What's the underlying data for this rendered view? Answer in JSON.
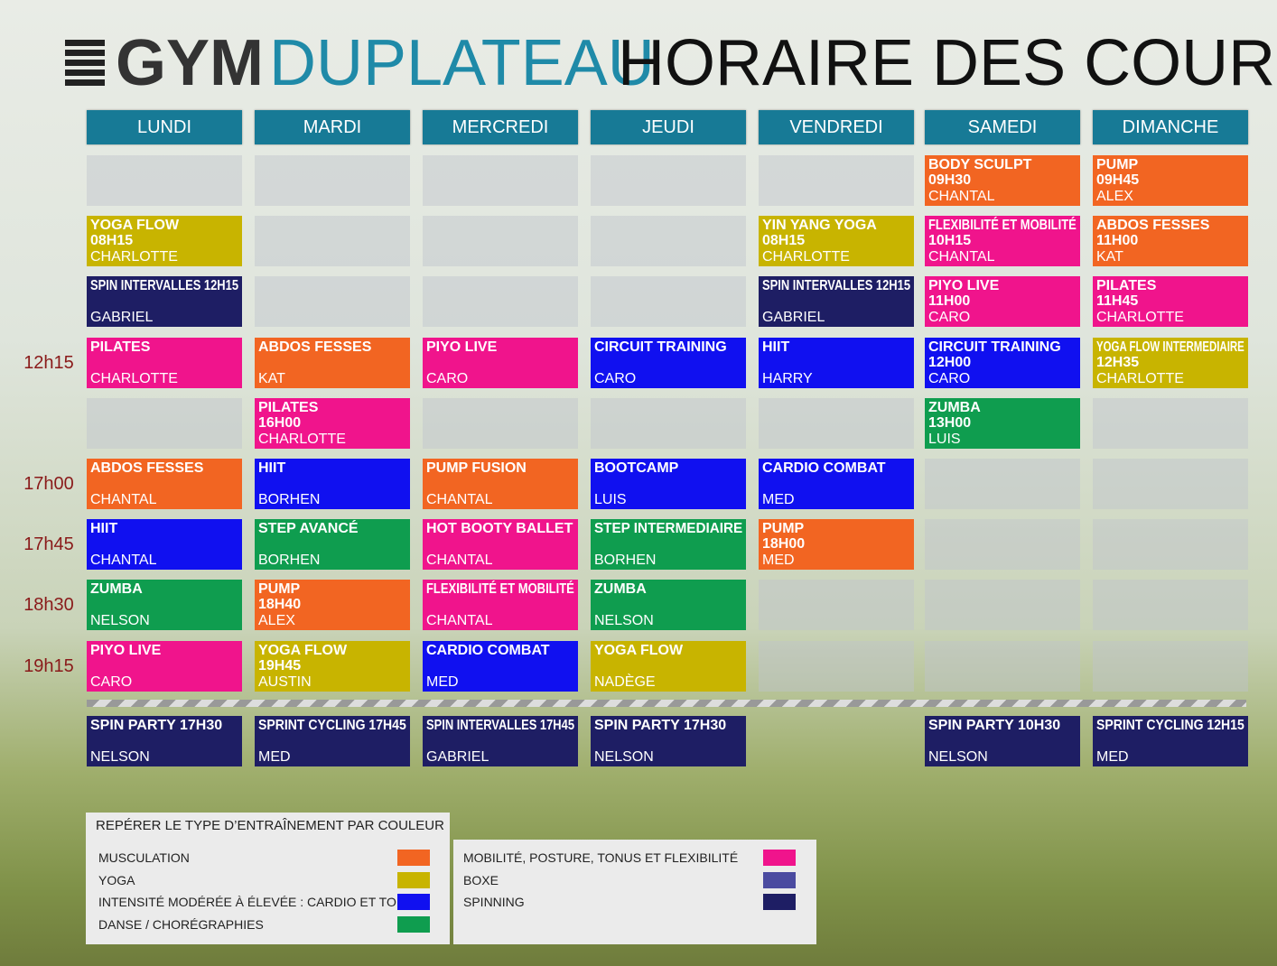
{
  "header": {
    "logo_main": "GYM",
    "logo_accent": "DUPLATEAU",
    "title": "HORAIRE DES COURS"
  },
  "days": [
    "LUNDI",
    "MARDI",
    "MERCREDI",
    "JEUDI",
    "VENDREDI",
    "SAMEDI",
    "DIMANCHE"
  ],
  "rows": [
    {
      "cells": [
        null,
        null,
        null,
        null,
        null,
        {
          "title": "BODY SCULPT",
          "time": "09H30",
          "coach": "CHANTAL",
          "color": "#f26522"
        },
        {
          "title": "PUMP",
          "time": "09H45",
          "coach": "ALEX",
          "color": "#f26522"
        }
      ]
    },
    {
      "cells": [
        {
          "title": "YOGA FLOW",
          "time": "08H15",
          "coach": "CHARLOTTE",
          "color": "#c8b400"
        },
        null,
        null,
        null,
        {
          "title": "YIN YANG YOGA",
          "time": "08H15",
          "coach": "CHARLOTTE",
          "color": "#c8b400"
        },
        {
          "title": "FLEXIBILITÉ ET MOBILITÉ",
          "time": "10H15",
          "coach": "CHANTAL",
          "color": "#f0148c"
        },
        {
          "title": "ABDOS FESSES",
          "time": "11H00",
          "coach": "KAT",
          "color": "#f26522"
        }
      ]
    },
    {
      "cells": [
        {
          "title": "SPIN INTERVALLES 12H15",
          "coach": "GABRIEL",
          "color": "#1e1e64"
        },
        null,
        null,
        null,
        {
          "title": "SPIN INTERVALLES 12H15",
          "coach": "GABRIEL",
          "color": "#1e1e64"
        },
        {
          "title": "PIYO LIVE",
          "time": "11H00",
          "coach": "CARO",
          "color": "#f0148c"
        },
        {
          "title": "PILATES",
          "time": "11H45",
          "coach": "CHARLOTTE",
          "color": "#f0148c"
        }
      ]
    },
    {
      "label": "12h15",
      "cells": [
        {
          "title": "PILATES",
          "coach": "CHARLOTTE",
          "color": "#f0148c"
        },
        {
          "title": "ABDOS FESSES",
          "coach": "KAT",
          "color": "#f26522"
        },
        {
          "title": "PIYO LIVE",
          "coach": "CARO",
          "color": "#f0148c"
        },
        {
          "title": "CIRCUIT TRAINING",
          "coach": "CARO",
          "color": "#1010f0"
        },
        {
          "title": "HIIT",
          "coach": "HARRY",
          "color": "#1010f0"
        },
        {
          "title": "CIRCUIT TRAINING",
          "time": "12H00",
          "coach": "CARO",
          "color": "#1010f0"
        },
        {
          "title": "YOGA FLOW INTERMEDIAIRE",
          "time": "12H35",
          "coach": "CHARLOTTE",
          "color": "#c8b400"
        }
      ]
    },
    {
      "cells": [
        null,
        {
          "title": "PILATES",
          "time": "16H00",
          "coach": "CHARLOTTE",
          "color": "#f0148c"
        },
        null,
        null,
        null,
        {
          "title": "ZUMBA",
          "time": "13H00",
          "coach": "LUIS",
          "color": "#0f9d4f"
        },
        null
      ]
    },
    {
      "label": "17h00",
      "cells": [
        {
          "title": "ABDOS FESSES",
          "coach": "CHANTAL",
          "color": "#f26522"
        },
        {
          "title": "HIIT",
          "coach": "BORHEN",
          "color": "#1010f0"
        },
        {
          "title": "PUMP FUSION",
          "coach": "CHANTAL",
          "color": "#f26522"
        },
        {
          "title": "BOOTCAMP",
          "coach": "LUIS",
          "color": "#1010f0"
        },
        {
          "title": "CARDIO COMBAT",
          "coach": "MED",
          "color": "#1010f0"
        },
        null,
        null
      ]
    },
    {
      "label": "17h45",
      "cells": [
        {
          "title": "HIIT",
          "coach": "CHANTAL",
          "color": "#1010f0"
        },
        {
          "title": "STEP AVANCÉ",
          "coach": "BORHEN",
          "color": "#0f9d4f"
        },
        {
          "title": "HOT BOOTY BALLET",
          "coach": "CHANTAL",
          "color": "#f0148c"
        },
        {
          "title": "STEP INTERMEDIAIRE",
          "coach": "BORHEN",
          "color": "#0f9d4f"
        },
        {
          "title": "PUMP",
          "time": "18H00",
          "coach": "MED",
          "color": "#f26522"
        },
        null,
        null
      ]
    },
    {
      "label": "18h30",
      "cells": [
        {
          "title": "ZUMBA",
          "coach": "NELSON",
          "color": "#0f9d4f"
        },
        {
          "title": "PUMP",
          "time": "18H40",
          "coach": "ALEX",
          "color": "#f26522"
        },
        {
          "title": "FLEXIBILITÉ ET MOBILITÉ",
          "coach": "CHANTAL",
          "color": "#f0148c"
        },
        {
          "title": "ZUMBA",
          "coach": "NELSON",
          "color": "#0f9d4f"
        },
        null,
        null,
        null
      ]
    },
    {
      "label": "19h15",
      "cells": [
        {
          "title": "PIYO LIVE",
          "coach": "CARO",
          "color": "#f0148c"
        },
        {
          "title": "YOGA FLOW",
          "time": "19H45",
          "coach": "AUSTIN",
          "color": "#c8b400"
        },
        {
          "title": "CARDIO COMBAT",
          "coach": "MED",
          "color": "#1010f0"
        },
        {
          "title": "YOGA FLOW",
          "coach": "NADÈGE",
          "color": "#c8b400"
        },
        null,
        null,
        null
      ]
    }
  ],
  "spinning_row": [
    {
      "title": "SPIN PARTY 17H30",
      "coach": "NELSON",
      "color": "#1e1e64"
    },
    {
      "title": "SPRINT CYCLING 17H45",
      "coach": "MED",
      "color": "#1e1e64"
    },
    {
      "title": "SPIN INTERVALLES 17H45",
      "coach": "GABRIEL",
      "color": "#1e1e64"
    },
    {
      "title": "SPIN PARTY 17H30",
      "coach": "NELSON",
      "color": "#1e1e64"
    },
    null,
    {
      "title": "SPIN PARTY 10H30",
      "coach": "NELSON",
      "color": "#1e1e64"
    },
    {
      "title": "SPRINT CYCLING 12H15",
      "coach": "MED",
      "color": "#1e1e64"
    }
  ],
  "legend": {
    "title": "REPÉRER LE TYPE D’ENTRAÎNEMENT PAR COULEUR",
    "left": [
      {
        "label": "MUSCULATION",
        "color": "#f26522"
      },
      {
        "label": "YOGA",
        "color": "#c8b400"
      },
      {
        "label": "INTENSITÉ MODÉRÉE À ÉLEVÉE : CARDIO ET TONUS",
        "color": "#1010f0"
      },
      {
        "label": "DANSE / CHORÉGRAPHIES",
        "color": "#0f9d4f"
      }
    ],
    "right": [
      {
        "label": "MOBILITÉ, POSTURE, TONUS ET FLEXIBILITÉ",
        "color": "#f0148c"
      },
      {
        "label": "BOXE",
        "color": "#4b4ba0"
      },
      {
        "label": "SPINNING",
        "color": "#1e1e64"
      }
    ]
  }
}
